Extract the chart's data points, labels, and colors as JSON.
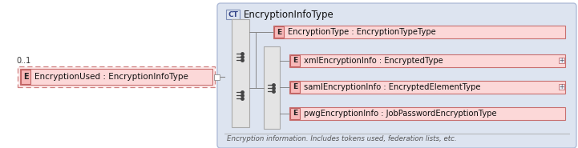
{
  "bg_color": "#ffffff",
  "outer_box_fill": "#dde4f0",
  "outer_box_border": "#b0bcd8",
  "outer_box_title": "EncryptionInfoType",
  "ct_label": "CT",
  "ct_fill": "#dde4f0",
  "ct_border": "#8090b8",
  "left_element_label": "EncryptionUsed : EncryptionInfoType",
  "left_cardinality": "0..1",
  "left_dashed_fill": "#fce8e8",
  "left_dashed_border": "#d08080",
  "element_fill": "#fcd8d8",
  "element_border": "#c87070",
  "e_fill": "#f8b8b8",
  "e_border": "#c06060",
  "elements": [
    {
      "label": "EncryptionType : EncryptionTypeType",
      "has_plus": false
    },
    {
      "label": "xmlEncryptionInfo : EncryptedType",
      "has_plus": true
    },
    {
      "label": "samlEncryptionInfo : EncryptedElementType",
      "has_plus": true
    },
    {
      "label": "pwgEncryptionInfo : JobPasswordEncryptionType",
      "has_plus": false
    }
  ],
  "footer_text": "Encryption information. Includes tokens used, federation lists, etc.",
  "seq_fill": "#e4e4e4",
  "seq_border": "#aaaaaa",
  "conn_color": "#888888",
  "icon_color": "#444444"
}
